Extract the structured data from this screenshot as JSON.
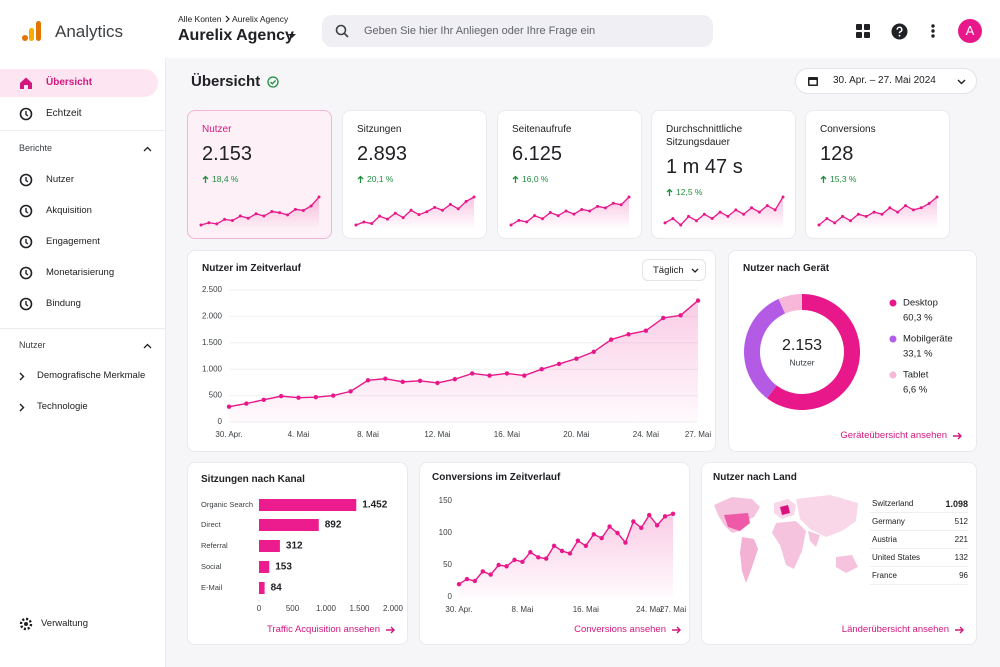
{
  "header": {
    "app_name": "Analytics",
    "breadcrumb": [
      "Alle Konten",
      "Aurelix Agency"
    ],
    "account": "Aurelix Agency",
    "search_placeholder": "Geben Sie hier Ihr Anliegen oder Ihre Frage ein",
    "avatar": "A"
  },
  "sidebar": {
    "items": [
      "Übersicht",
      "Echtzeit"
    ],
    "sections": [
      {
        "title": "Berichte",
        "items": [
          "Nutzer",
          "Akquisition",
          "Engagement",
          "Monetarisierung",
          "Bindung"
        ]
      },
      {
        "title": "Nutzer",
        "items": [
          "Demografische Merkmale",
          "Technologie"
        ]
      }
    ],
    "footer": "Verwaltung"
  },
  "page": {
    "title": "Übersicht",
    "date_range": "30. Apr. – 27. Mai 2024"
  },
  "kpis": [
    {
      "label": "Nutzer",
      "value": "2.153",
      "change": "18,4 %",
      "sparkline": [
        10,
        12,
        11,
        15,
        14,
        18,
        16,
        20,
        18,
        22,
        21,
        19,
        24,
        23,
        27,
        35
      ]
    },
    {
      "label": "Sitzungen",
      "value": "2.893",
      "change": "20,1 %",
      "sparkline": [
        8,
        10,
        9,
        14,
        12,
        16,
        13,
        18,
        15,
        17,
        20,
        18,
        22,
        19,
        24,
        27
      ]
    },
    {
      "label": "Seitenaufrufe",
      "value": "6.125",
      "change": "16,0 %",
      "sparkline": [
        6,
        9,
        8,
        12,
        10,
        14,
        12,
        15,
        13,
        16,
        15,
        18,
        17,
        20,
        19,
        24
      ]
    },
    {
      "label": "Durchschnittliche Sitzungsdauer",
      "value": "1 m 47 s",
      "change": "12,5 %",
      "sparkline": [
        10,
        12,
        9,
        13,
        11,
        14,
        12,
        15,
        13,
        16,
        14,
        17,
        15,
        18,
        16,
        22
      ]
    },
    {
      "label": "Conversions",
      "value": "128",
      "change": "15,3 %",
      "sparkline": [
        8,
        11,
        9,
        12,
        10,
        13,
        12,
        14,
        13,
        16,
        14,
        17,
        15,
        16,
        18,
        21
      ]
    }
  ],
  "chart_data": [
    {
      "type": "line",
      "title": "Nutzer im Zeitverlauf",
      "interval": "Täglich",
      "categories": [
        "30. Apr.",
        null,
        null,
        null,
        "4. Mai",
        null,
        null,
        null,
        "8. Mai",
        null,
        null,
        null,
        "12. Mai",
        null,
        null,
        null,
        "16. Mai",
        null,
        null,
        null,
        "20. Mai",
        null,
        null,
        null,
        "24. Mai",
        null,
        null,
        "27. Mai"
      ],
      "values": [
        290,
        350,
        420,
        490,
        460,
        470,
        500,
        580,
        790,
        820,
        760,
        780,
        740,
        810,
        920,
        880,
        920,
        880,
        1000,
        1100,
        1200,
        1330,
        1560,
        1660,
        1730,
        1970,
        2020,
        2300
      ],
      "color": "#e8178a",
      "ylim": [
        0,
        2500
      ],
      "yticks": [
        0,
        500,
        {
          "value": 1000,
          "label": "1.000"
        },
        {
          "value": 1500,
          "label": "1.500"
        },
        {
          "value": 2000,
          "label": "2.000"
        },
        {
          "value": 2500,
          "label": "2.500"
        }
      ],
      "grid": true
    },
    {
      "type": "pie",
      "title": "Nutzer nach Gerät",
      "center_value": "2.153",
      "center_label": "Nutzer",
      "categories": [
        "Desktop",
        "Mobilgeräte",
        "Tablet"
      ],
      "values": [
        60.3,
        33.1,
        6.6
      ],
      "value_labels": [
        "60,3 %",
        "33,1 %",
        "6,6 %"
      ],
      "colors": [
        "#e8178a",
        "#b45be6",
        "#f7b7d9"
      ],
      "link": "Geräteübersicht ansehen"
    },
    {
      "type": "bar",
      "orientation": "horizontal",
      "title": "Sitzungen nach Kanal",
      "categories": [
        "Organic Search",
        "Direct",
        "Referral",
        "Social",
        "E-Mail"
      ],
      "values": [
        1452,
        892,
        312,
        153,
        84
      ],
      "value_labels": [
        "1.452",
        "892",
        "312",
        "153",
        "84"
      ],
      "color": "#ec1c8f",
      "xlim": [
        0,
        2000
      ],
      "xticks": [
        0,
        500,
        {
          "value": 1000,
          "label": "1.000"
        },
        {
          "value": 1500,
          "label": "1.500"
        },
        {
          "value": 2000,
          "label": "2.000"
        }
      ],
      "link": "Traffic Acquisition ansehen"
    },
    {
      "type": "line",
      "title": "Conversions im Zeitverlauf",
      "categories": [
        "30. Apr.",
        null,
        null,
        null,
        null,
        null,
        null,
        null,
        "8. Mai",
        null,
        null,
        null,
        null,
        null,
        null,
        null,
        "16. Mai",
        null,
        null,
        null,
        null,
        null,
        null,
        null,
        "24. Mai",
        null,
        null,
        "27. Mai"
      ],
      "values": [
        20,
        28,
        25,
        40,
        35,
        50,
        48,
        58,
        55,
        70,
        62,
        60,
        80,
        72,
        68,
        88,
        80,
        98,
        92,
        110,
        100,
        85,
        118,
        108,
        128,
        112,
        126,
        130
      ],
      "color": "#e8178a",
      "ylim": [
        0,
        150
      ],
      "yticks": [
        0,
        50,
        100,
        150
      ],
      "grid": false,
      "link": "Conversions ansehen"
    }
  ],
  "country_table": {
    "title": "Nutzer nach Land",
    "rows": [
      [
        "Switzerland",
        "1.098"
      ],
      [
        "Germany",
        "512"
      ],
      [
        "Austria",
        "221"
      ],
      [
        "United States",
        "132"
      ],
      [
        "France",
        "96"
      ]
    ],
    "link": "Länderübersicht ansehen"
  }
}
